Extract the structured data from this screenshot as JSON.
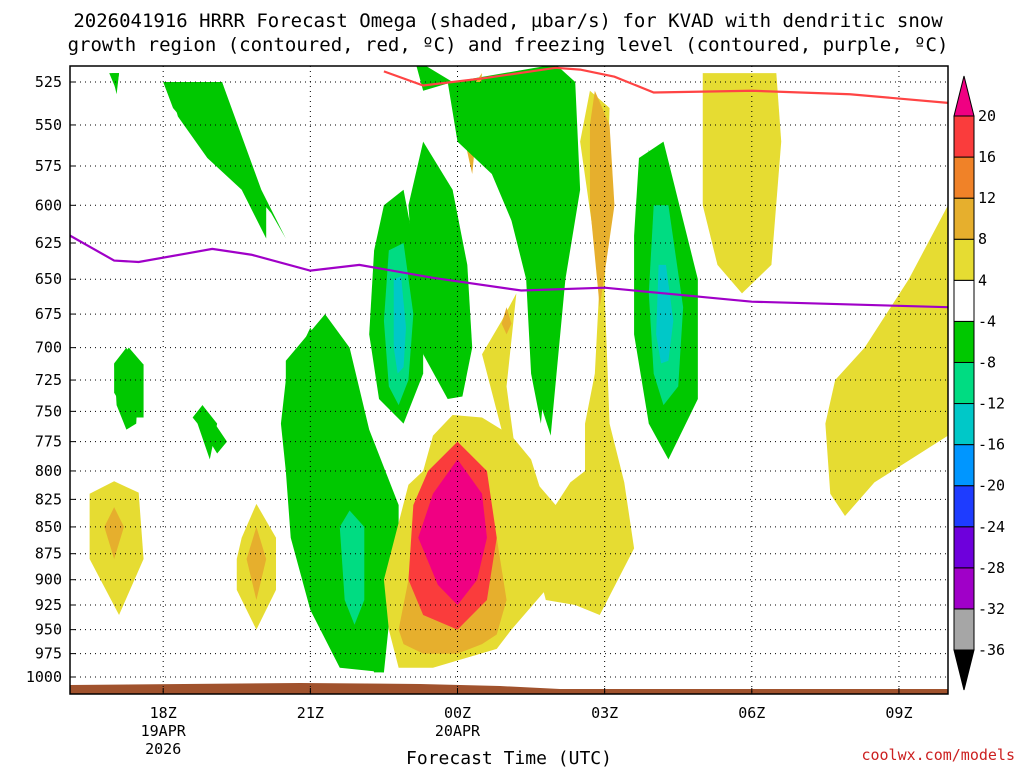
{
  "chart_data": {
    "type": "heatmap",
    "title_line1": "2026041916 HRRR Forecast Omega (shaded, µbar/s) for KVAD with dendritic snow",
    "title_line2": "growth region (contoured, red, ºC) and freezing level (contoured, purple, ºC)",
    "xlabel": "Forecast Time (UTC)",
    "credit": "coolwx.com/models",
    "colors": {
      "surface": "#a0522d",
      "dgz": "#ff4444",
      "freezing": "#a000c8"
    },
    "x_range_hours_from_18z": [
      -1.9,
      16.0
    ],
    "y_levels": [
      525,
      550,
      575,
      600,
      625,
      650,
      675,
      700,
      725,
      750,
      775,
      800,
      825,
      850,
      875,
      900,
      925,
      950,
      975,
      1000
    ],
    "x_ticks": [
      {
        "hour": 0,
        "label": "18Z",
        "sub1": "19APR",
        "sub2": "2026"
      },
      {
        "hour": 3,
        "label": "21Z",
        "sub1": "",
        "sub2": ""
      },
      {
        "hour": 6,
        "label": "00Z",
        "sub1": "20APR",
        "sub2": ""
      },
      {
        "hour": 9,
        "label": "03Z",
        "sub1": "",
        "sub2": ""
      },
      {
        "hour": 12,
        "label": "06Z",
        "sub1": "",
        "sub2": ""
      },
      {
        "hour": 15,
        "label": "09Z",
        "sub1": "",
        "sub2": ""
      }
    ],
    "colorbar": {
      "bins": [
        {
          "color": "#000000"
        },
        {
          "color": "#a6a6a6"
        },
        {
          "color": "#a000c8"
        },
        {
          "color": "#6e00dc"
        },
        {
          "color": "#1e3cff"
        },
        {
          "color": "#0096ff"
        },
        {
          "color": "#00c8c8"
        },
        {
          "color": "#00dc82"
        },
        {
          "color": "#00c800"
        },
        {
          "color": "#ffffff"
        },
        {
          "color": "#e6dc32"
        },
        {
          "color": "#e6af2d"
        },
        {
          "color": "#f08228"
        },
        {
          "color": "#fa3c3c"
        },
        {
          "color": "#f00082"
        }
      ],
      "labels": [
        "-36",
        "-32",
        "-28",
        "-24",
        "-20",
        "-16",
        "-12",
        "-8",
        "-4",
        "4",
        "8",
        "12",
        "16",
        "20"
      ]
    },
    "freezing_level": [
      {
        "h": -1.9,
        "p": 620
      },
      {
        "h": -1.0,
        "p": 637
      },
      {
        "h": -0.5,
        "p": 638
      },
      {
        "h": 0.5,
        "p": 632
      },
      {
        "h": 1.0,
        "p": 629
      },
      {
        "h": 1.8,
        "p": 633
      },
      {
        "h": 3.0,
        "p": 644
      },
      {
        "h": 4.0,
        "p": 640
      },
      {
        "h": 5.5,
        "p": 649
      },
      {
        "h": 7.3,
        "p": 658
      },
      {
        "h": 9.0,
        "p": 656
      },
      {
        "h": 10.5,
        "p": 661
      },
      {
        "h": 12.0,
        "p": 666
      },
      {
        "h": 14.0,
        "p": 668
      },
      {
        "h": 16.0,
        "p": 670
      }
    ],
    "dgz_top": [
      {
        "h": 4.5,
        "p": 519
      },
      {
        "h": 5.3,
        "p": 527
      },
      {
        "h": 6.5,
        "p": 523
      },
      {
        "h": 8.0,
        "p": 517
      },
      {
        "h": 8.5,
        "p": 518
      },
      {
        "h": 9.2,
        "p": 522
      },
      {
        "h": 10.0,
        "p": 531
      },
      {
        "h": 12.0,
        "p": 530
      },
      {
        "h": 14.0,
        "p": 532
      },
      {
        "h": 16.0,
        "p": 537
      }
    ],
    "regions": [
      {
        "fill": 4,
        "pts": [
          [
            0.0,
            525
          ],
          [
            1.2,
            525
          ],
          [
            2.0,
            590
          ],
          [
            2.5,
            622
          ],
          [
            2.2,
            605
          ],
          [
            1.8,
            590
          ],
          [
            1.2,
            575
          ],
          [
            0.2,
            540
          ]
        ]
      },
      {
        "fill": 4,
        "pts": [
          [
            -1.1,
            520
          ],
          [
            -0.9,
            520
          ],
          [
            -0.95,
            530
          ]
        ]
      },
      {
        "fill": 4,
        "pts": [
          [
            -0.7,
            700
          ],
          [
            -0.4,
            713
          ],
          [
            -0.4,
            755
          ],
          [
            -0.7,
            755
          ],
          [
            -1.0,
            735
          ],
          [
            -1.0,
            713
          ]
        ]
      },
      {
        "fill": 4,
        "pts": [
          [
            0.8,
            745
          ],
          [
            1.3,
            775
          ],
          [
            1.1,
            785
          ],
          [
            0.8,
            765
          ],
          [
            0.6,
            755
          ]
        ]
      },
      {
        "fill": 4,
        "pts": [
          [
            3.3,
            675
          ],
          [
            3.8,
            700
          ],
          [
            4.2,
            765
          ],
          [
            4.8,
            830
          ],
          [
            4.8,
            880
          ],
          [
            4.6,
            945
          ],
          [
            4.5,
            995
          ],
          [
            4.3,
            995
          ],
          [
            4.0,
            950
          ],
          [
            3.4,
            900
          ],
          [
            3.0,
            850
          ],
          [
            2.8,
            800
          ],
          [
            2.5,
            750
          ],
          [
            2.5,
            710
          ]
        ]
      },
      {
        "fill": 4,
        "pts": [
          [
            5.3,
            560
          ],
          [
            5.9,
            590
          ],
          [
            6.2,
            640
          ],
          [
            6.3,
            700
          ],
          [
            6.1,
            738
          ],
          [
            5.8,
            740
          ],
          [
            5.3,
            705
          ],
          [
            5.1,
            650
          ],
          [
            5.0,
            600
          ]
        ]
      },
      {
        "fill": 4,
        "pts": [
          [
            5.9,
            525
          ],
          [
            8.0,
            515
          ],
          [
            8.4,
            525
          ],
          [
            8.5,
            590
          ],
          [
            8.2,
            650
          ],
          [
            7.9,
            770
          ],
          [
            7.7,
            745
          ],
          [
            7.6,
            650
          ],
          [
            6.6,
            560
          ],
          [
            6.4,
            525
          ]
        ]
      },
      {
        "fill": 4,
        "pts": [
          [
            9.9,
            565
          ],
          [
            10.4,
            612
          ],
          [
            10.6,
            690
          ],
          [
            10.4,
            770
          ],
          [
            10.0,
            740
          ],
          [
            9.8,
            690
          ],
          [
            9.8,
            600
          ]
        ]
      },
      {
        "fill": 4,
        "pts": [
          [
            -0.1,
            490
          ],
          [
            4.9,
            490
          ],
          [
            5.3,
            530
          ],
          [
            5.9,
            525
          ],
          [
            5.3,
            515
          ],
          [
            3.6,
            500
          ],
          [
            0.1,
            500
          ]
        ]
      },
      {
        "fill": 3,
        "pts": [
          [
            -1.5,
            820
          ],
          [
            -1.0,
            809
          ],
          [
            -0.5,
            819
          ],
          [
            -0.4,
            880
          ],
          [
            -0.9,
            935
          ],
          [
            -1.5,
            880
          ]
        ]
      },
      {
        "fill": 3,
        "pts": [
          [
            1.5,
            880
          ],
          [
            1.6,
            860
          ],
          [
            1.9,
            829
          ],
          [
            2.3,
            860
          ],
          [
            2.3,
            910
          ],
          [
            1.9,
            950
          ],
          [
            1.5,
            910
          ]
        ]
      },
      {
        "fill": 2,
        "pts": [
          [
            -1.2,
            850
          ],
          [
            -1.0,
            832
          ],
          [
            -0.8,
            850
          ],
          [
            -1.0,
            880
          ]
        ]
      },
      {
        "fill": 2,
        "pts": [
          [
            1.7,
            880
          ],
          [
            1.9,
            850
          ],
          [
            2.1,
            880
          ],
          [
            1.9,
            920
          ]
        ]
      },
      {
        "fill": 3,
        "pts": [
          [
            4.5,
            900
          ],
          [
            5.0,
            812
          ],
          [
            5.3,
            800
          ],
          [
            5.5,
            770
          ],
          [
            5.9,
            753
          ],
          [
            6.5,
            755
          ],
          [
            7.1,
            770
          ],
          [
            7.5,
            790
          ],
          [
            8.0,
            860
          ],
          [
            8.2,
            875
          ],
          [
            7.8,
            910
          ],
          [
            7.1,
            950
          ],
          [
            6.8,
            970
          ],
          [
            5.5,
            990
          ],
          [
            4.8,
            990
          ],
          [
            4.6,
            950
          ]
        ]
      },
      {
        "fill": 3,
        "pts": [
          [
            6.5,
            705
          ],
          [
            6.9,
            680
          ],
          [
            7.2,
            660
          ],
          [
            7.0,
            730
          ],
          [
            7.2,
            790
          ],
          [
            8.0,
            830
          ],
          [
            8.3,
            810
          ],
          [
            8.6,
            800
          ],
          [
            8.6,
            760
          ],
          [
            8.8,
            720
          ],
          [
            8.9,
            650
          ],
          [
            8.5,
            560
          ],
          [
            8.7,
            530
          ],
          [
            9.1,
            540
          ],
          [
            9.0,
            660
          ],
          [
            9.1,
            760
          ],
          [
            9.4,
            810
          ],
          [
            9.6,
            870
          ],
          [
            8.9,
            935
          ],
          [
            8.4,
            925
          ],
          [
            7.8,
            920
          ]
        ]
      },
      {
        "fill": 3,
        "pts": [
          [
            11.0,
            520
          ],
          [
            12.5,
            520
          ],
          [
            12.6,
            560
          ],
          [
            12.4,
            640
          ],
          [
            11.8,
            660
          ],
          [
            11.3,
            640
          ],
          [
            11.0,
            600
          ]
        ]
      },
      {
        "fill": 3,
        "pts": [
          [
            16.0,
            600
          ],
          [
            16.0,
            770
          ],
          [
            14.5,
            810
          ],
          [
            13.9,
            840
          ],
          [
            13.6,
            820
          ],
          [
            13.5,
            760
          ],
          [
            13.7,
            725
          ],
          [
            14.3,
            700
          ],
          [
            15.2,
            650
          ]
        ]
      },
      {
        "fill": 2,
        "pts": [
          [
            8.8,
            530
          ],
          [
            9.1,
            550
          ],
          [
            9.2,
            600
          ],
          [
            8.9,
            670
          ],
          [
            8.7,
            600
          ],
          [
            8.7,
            550
          ]
        ]
      },
      {
        "fill": 2,
        "pts": [
          [
            6.0,
            540
          ],
          [
            6.3,
            580
          ],
          [
            6.5,
            520
          ]
        ]
      },
      {
        "fill": 2,
        "pts": [
          [
            7.0,
            670
          ],
          [
            7.1,
            682
          ],
          [
            7.0,
            690
          ],
          [
            6.9,
            682
          ]
        ]
      },
      {
        "fill": 2,
        "pts": [
          [
            4.8,
            950
          ],
          [
            5.0,
            900
          ],
          [
            5.1,
            860
          ],
          [
            5.3,
            840
          ],
          [
            6.0,
            855
          ],
          [
            6.5,
            860
          ],
          [
            6.8,
            860
          ],
          [
            7.0,
            920
          ],
          [
            6.8,
            955
          ],
          [
            6.5,
            965
          ],
          [
            6.0,
            975
          ],
          [
            5.3,
            975
          ],
          [
            4.9,
            965
          ]
        ]
      },
      {
        "fill": 1,
        "pts": [
          [
            5.0,
            900
          ],
          [
            5.1,
            830
          ],
          [
            5.4,
            800
          ],
          [
            6.0,
            775
          ],
          [
            6.6,
            800
          ],
          [
            6.8,
            860
          ],
          [
            6.6,
            920
          ],
          [
            6.0,
            950
          ],
          [
            5.3,
            935
          ]
        ]
      },
      {
        "fill": 0,
        "pts": [
          [
            5.2,
            860
          ],
          [
            5.5,
            820
          ],
          [
            6.0,
            790
          ],
          [
            6.5,
            820
          ],
          [
            6.6,
            860
          ],
          [
            6.4,
            900
          ],
          [
            6.0,
            925
          ],
          [
            5.6,
            905
          ]
        ]
      }
    ],
    "green_dark": [
      {
        "pts": [
          [
            -1.1,
            520
          ],
          [
            -0.9,
            520
          ],
          [
            -0.95,
            530
          ]
        ]
      },
      {
        "pts": [
          [
            0.0,
            525
          ],
          [
            1.2,
            525
          ],
          [
            2.0,
            590
          ],
          [
            2.5,
            622
          ],
          [
            2.2,
            605
          ],
          [
            1.8,
            590
          ],
          [
            1.2,
            575
          ],
          [
            0.2,
            540
          ]
        ]
      }
    ]
  }
}
